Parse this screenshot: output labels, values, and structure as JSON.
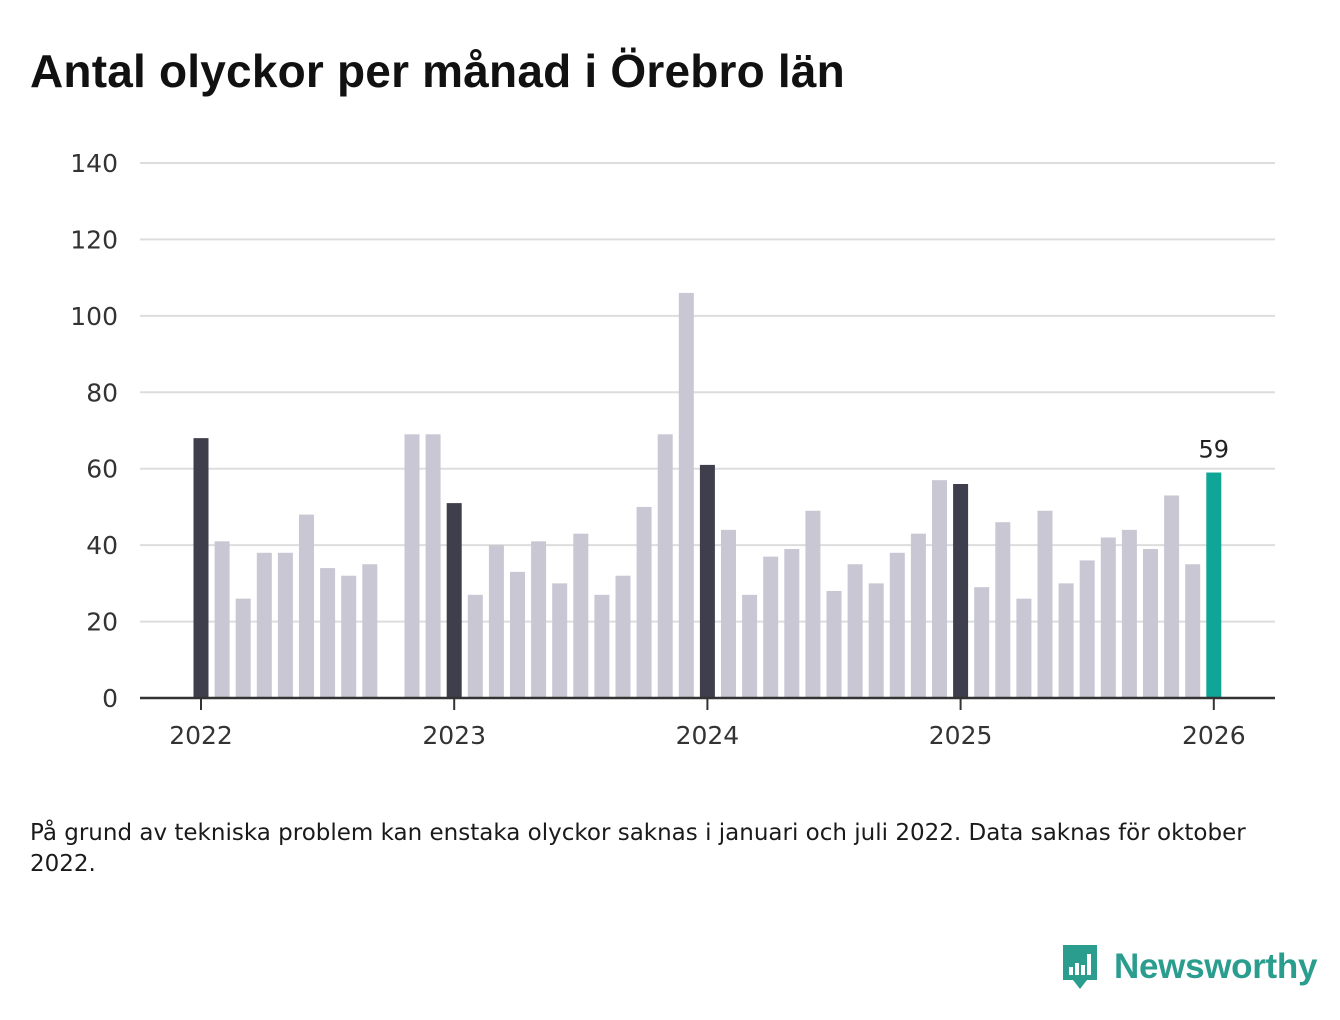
{
  "title": "Antal olyckor per månad i Örebro län",
  "note": "På grund av tekniska problem kan enstaka olyckor saknas i januari och juli 2022. Data saknas för oktober 2022.",
  "brand": {
    "name": "Newsworthy",
    "color": "#2a9d8f"
  },
  "colors": {
    "january": "#3f3e4c",
    "month": "#c8c7d3",
    "latest": "#0fa597",
    "grid": "#dddddd",
    "axis": "#333333"
  },
  "chart_data": {
    "type": "bar",
    "title": "Antal olyckor per månad i Örebro län",
    "xlabel": "",
    "ylabel": "",
    "ylim": [
      0,
      140
    ],
    "yticks": [
      0,
      20,
      40,
      60,
      80,
      100,
      120,
      140
    ],
    "xticks": [
      "2022",
      "2023",
      "2024",
      "2025",
      "2026"
    ],
    "categories": [
      "2022-01",
      "2022-02",
      "2022-03",
      "2022-04",
      "2022-05",
      "2022-06",
      "2022-07",
      "2022-08",
      "2022-09",
      "2022-10",
      "2022-11",
      "2022-12",
      "2023-01",
      "2023-02",
      "2023-03",
      "2023-04",
      "2023-05",
      "2023-06",
      "2023-07",
      "2023-08",
      "2023-09",
      "2023-10",
      "2023-11",
      "2023-12",
      "2024-01",
      "2024-02",
      "2024-03",
      "2024-04",
      "2024-05",
      "2024-06",
      "2024-07",
      "2024-08",
      "2024-09",
      "2024-10",
      "2024-11",
      "2024-12",
      "2025-01",
      "2025-02",
      "2025-03",
      "2025-04",
      "2025-05",
      "2025-06",
      "2025-07",
      "2025-08",
      "2025-09",
      "2025-10",
      "2025-11",
      "2025-12",
      "2026-01"
    ],
    "values": [
      68,
      41,
      26,
      38,
      38,
      48,
      34,
      32,
      35,
      null,
      69,
      69,
      51,
      27,
      40,
      33,
      41,
      30,
      43,
      27,
      32,
      50,
      69,
      106,
      61,
      44,
      27,
      37,
      39,
      49,
      28,
      35,
      30,
      38,
      43,
      57,
      56,
      29,
      46,
      26,
      49,
      30,
      36,
      42,
      44,
      39,
      53,
      35,
      59
    ],
    "highlight_label": "59",
    "grid": true,
    "legend": "none"
  }
}
